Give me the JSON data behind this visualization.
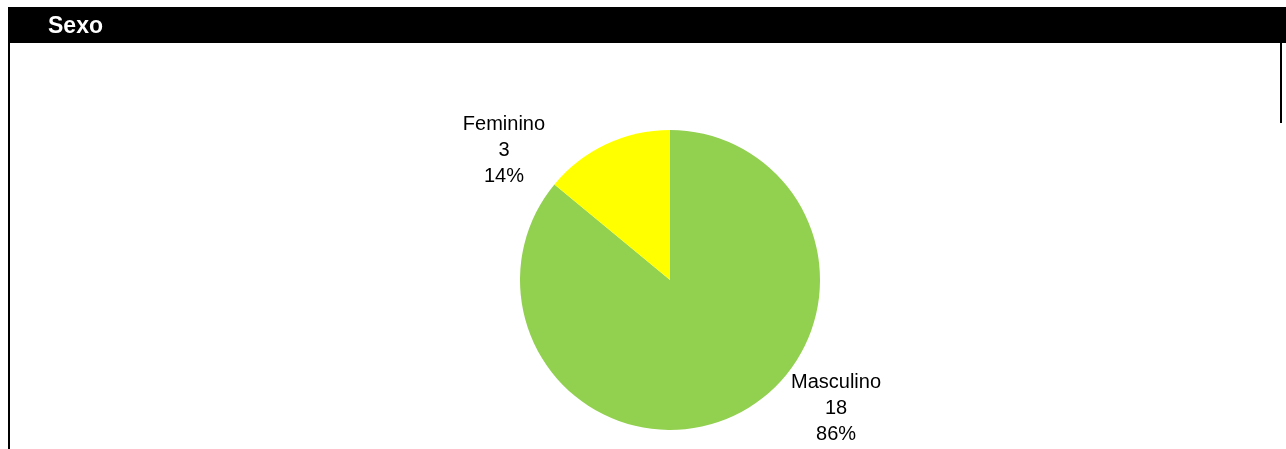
{
  "chart_data": {
    "type": "pie",
    "title": "Sexo",
    "categories": [
      "Masculino",
      "Feminino"
    ],
    "values": [
      86,
      14
    ],
    "colors": [
      "#92d050",
      "#ffff00"
    ],
    "value_labels": [
      "18\n86%",
      "3\n14%"
    ],
    "legend": false
  }
}
